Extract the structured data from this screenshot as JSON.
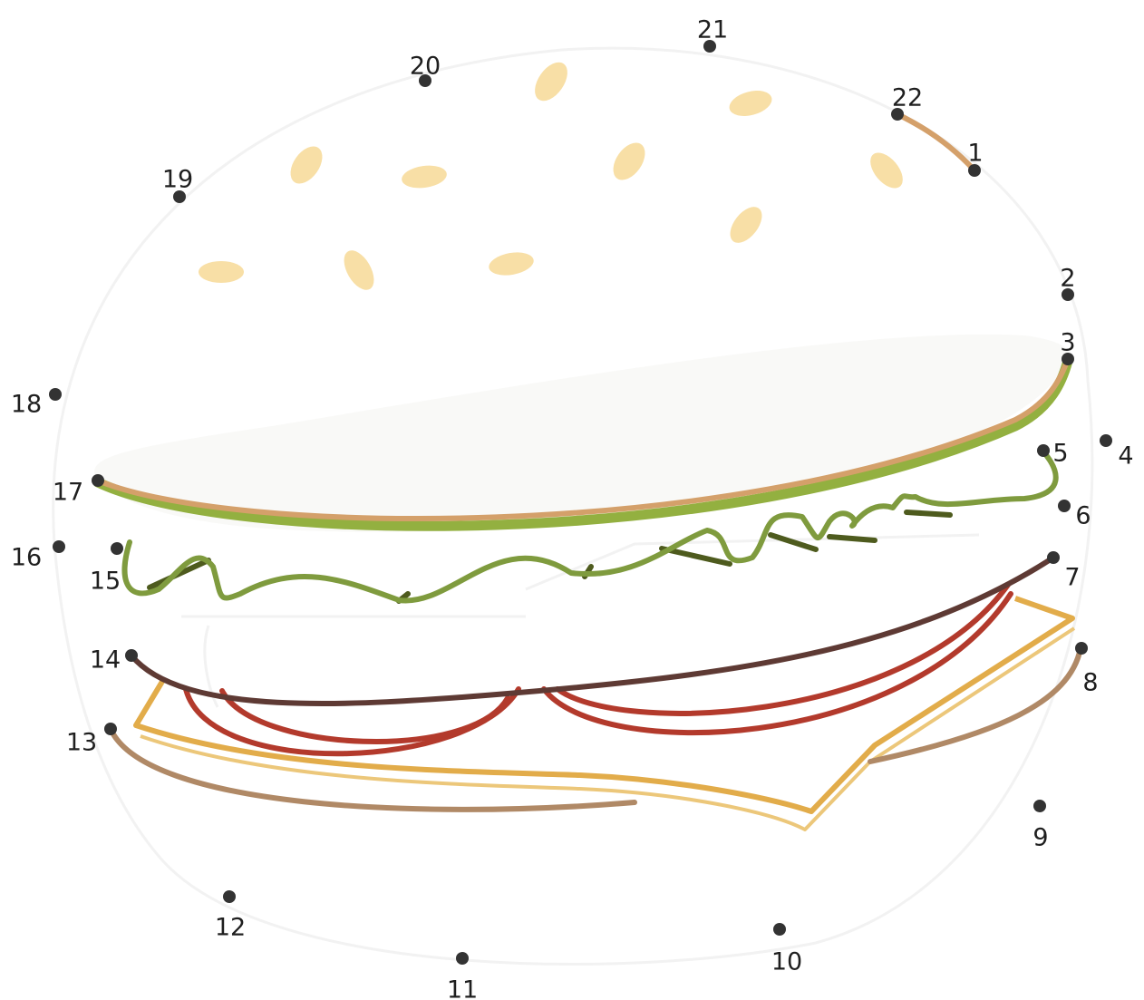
{
  "puzzle": {
    "dots": [
      {
        "n": "1"
      },
      {
        "n": "2"
      },
      {
        "n": "3"
      },
      {
        "n": "4"
      },
      {
        "n": "5"
      },
      {
        "n": "6"
      },
      {
        "n": "7"
      },
      {
        "n": "8"
      },
      {
        "n": "9"
      },
      {
        "n": "10"
      },
      {
        "n": "11"
      },
      {
        "n": "12"
      },
      {
        "n": "13"
      },
      {
        "n": "14"
      },
      {
        "n": "15"
      },
      {
        "n": "16"
      },
      {
        "n": "17"
      },
      {
        "n": "18"
      },
      {
        "n": "19"
      },
      {
        "n": "20"
      },
      {
        "n": "21"
      },
      {
        "n": "22"
      }
    ]
  },
  "colors": {
    "dot": "#333333",
    "bun_edge": "#d4a06a",
    "lettuce": "#7f9b3e",
    "lettuce_dark": "#4e5b1e",
    "lettuce_rim": "#93b040",
    "tomato": "#b33a2c",
    "onion": "#5e3a34",
    "cheese": "#e2ac4a",
    "cheese_light": "#ecc77a",
    "patty_edge": "#b08966",
    "sesame": "#f8dfa6",
    "outline_faint": "#f2f2f2"
  }
}
